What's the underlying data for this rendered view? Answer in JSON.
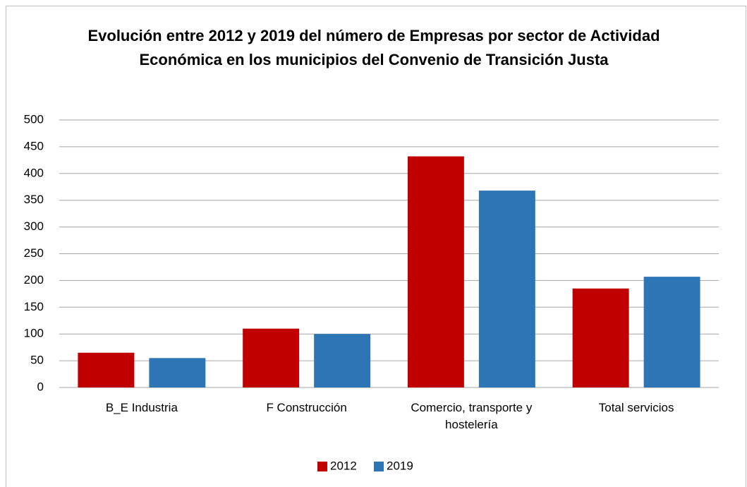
{
  "chart_data": {
    "type": "bar",
    "title": "Evolución entre 2012 y 2019 del número de Empresas por sector de Actividad Económica en los municipios del Convenio de Transición Justa",
    "categories": [
      "B_E Industria",
      "F Construcción",
      "Comercio, transporte y hostelería",
      "Total servicios"
    ],
    "series": [
      {
        "name": "2012",
        "color": "#c00000",
        "values": [
          65,
          110,
          432,
          185
        ]
      },
      {
        "name": "2019",
        "color": "#2e75b6",
        "values": [
          55,
          100,
          368,
          207
        ]
      }
    ],
    "ylim": [
      0,
      500
    ],
    "yticks": [
      0,
      50,
      100,
      150,
      200,
      250,
      300,
      350,
      400,
      450,
      500
    ],
    "grid": true,
    "legend": "bottom"
  }
}
